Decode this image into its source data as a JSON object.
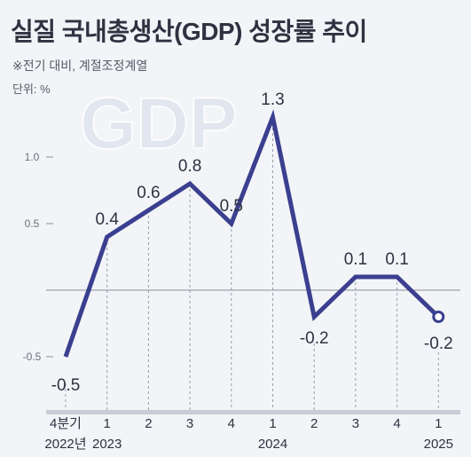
{
  "title": "실질 국내총생산(GDP) 성장률 추이",
  "subtitle": "※전기 대비, 계절조정계열",
  "unit": "단위: %",
  "watermark": "GDP",
  "colors": {
    "line": "#3a3f8f",
    "axis": "#8a8e98",
    "grid": "#9a9ea8",
    "text": "#2f3240",
    "bg": "#f2f4f7"
  },
  "chart_data": {
    "type": "line",
    "categories": [
      "4분기",
      "1",
      "2",
      "3",
      "4",
      "1",
      "2",
      "3",
      "4",
      "1"
    ],
    "year_labels": [
      {
        "index": 0,
        "text": "2022년"
      },
      {
        "index": 1,
        "text": "2023"
      },
      {
        "index": 5,
        "text": "2024"
      },
      {
        "index": 9,
        "text": "2025"
      }
    ],
    "values": [
      -0.5,
      0.4,
      0.6,
      0.8,
      0.5,
      1.3,
      -0.2,
      0.1,
      0.1,
      -0.2
    ],
    "value_labels": [
      "-0.5",
      "0.4",
      "0.6",
      "0.8",
      "0.5",
      "1.3",
      "-0.2",
      "0.1",
      "0.1",
      "-0.2"
    ],
    "yticks": [
      -0.5,
      0.5,
      1.0
    ],
    "ytick_labels": [
      "-0.5",
      "0.5",
      "1.0"
    ],
    "ylim": [
      -0.9,
      1.5
    ],
    "grid": "vertical dashed",
    "last_point_marker": "hollow circle"
  }
}
